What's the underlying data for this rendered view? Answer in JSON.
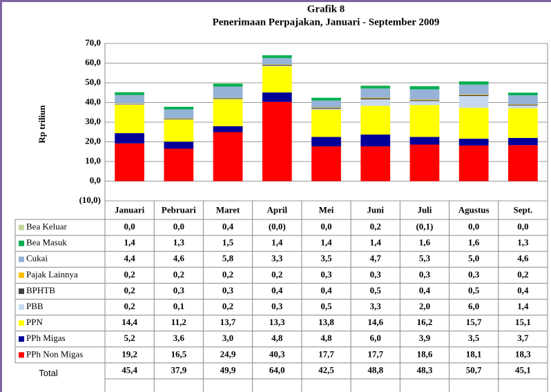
{
  "chart_data": {
    "type": "stacked_bar",
    "title": "Grafik 8",
    "subtitle": "Penerimaan Perpajakan, Januari - September 2009",
    "y_label": "Rp triliun",
    "categories": [
      "Januari",
      "Pebruari",
      "Maret",
      "April",
      "Mei",
      "Juni",
      "Juli",
      "Agustus",
      "Sept."
    ],
    "ylim": [
      -10,
      70
    ],
    "yticks": [
      {
        "value": -10,
        "label": "(10,0)"
      },
      {
        "value": 0,
        "label": "0,0"
      },
      {
        "value": 10,
        "label": "10,0"
      },
      {
        "value": 20,
        "label": "20,0"
      },
      {
        "value": 30,
        "label": "30,0"
      },
      {
        "value": 40,
        "label": "40,0"
      },
      {
        "value": 50,
        "label": "50,0"
      },
      {
        "value": 60,
        "label": "60,0"
      },
      {
        "value": 70,
        "label": "70,0"
      }
    ],
    "grid": true,
    "series": [
      {
        "name": "PPh Non Migas",
        "color": "#ff0000",
        "values": [
          19.2,
          16.5,
          24.9,
          40.3,
          17.7,
          17.7,
          18.6,
          18.1,
          18.3
        ],
        "value_labels": [
          "19,2",
          "16,5",
          "24,9",
          "40,3",
          "17,7",
          "17,7",
          "18,6",
          "18,1",
          "18,3"
        ]
      },
      {
        "name": "PPh Migas",
        "color": "#000099",
        "values": [
          5.2,
          3.6,
          3.0,
          4.8,
          4.8,
          6.0,
          3.9,
          3.5,
          3.7
        ],
        "value_labels": [
          "5,2",
          "3,6",
          "3,0",
          "4,8",
          "4,8",
          "6,0",
          "3,9",
          "3,5",
          "3,7"
        ]
      },
      {
        "name": "PPN",
        "color": "#ffff00",
        "values": [
          14.4,
          11.2,
          13.7,
          13.3,
          13.8,
          14.6,
          16.2,
          15.7,
          15.1
        ],
        "value_labels": [
          "14,4",
          "11,2",
          "13,7",
          "13,3",
          "13,8",
          "14,6",
          "16,2",
          "15,7",
          "15,1"
        ]
      },
      {
        "name": "PBB",
        "color": "#c6d9f1",
        "values": [
          0.2,
          0.1,
          0.2,
          0.3,
          0.5,
          3.3,
          2.0,
          6.0,
          1.4
        ],
        "value_labels": [
          "0,2",
          "0,1",
          "0,2",
          "0,3",
          "0,5",
          "3,3",
          "2,0",
          "6,0",
          "1,4"
        ]
      },
      {
        "name": "BPHTB",
        "color": "#404040",
        "values": [
          0.2,
          0.3,
          0.3,
          0.4,
          0.4,
          0.5,
          0.4,
          0.5,
          0.4
        ],
        "value_labels": [
          "0,2",
          "0,3",
          "0,3",
          "0,4",
          "0,4",
          "0,5",
          "0,4",
          "0,5",
          "0,4"
        ]
      },
      {
        "name": "Pajak Lainnya",
        "color": "#ffc000",
        "values": [
          0.2,
          0.2,
          0.2,
          0.2,
          0.3,
          0.3,
          0.3,
          0.3,
          0.2
        ],
        "value_labels": [
          "0,2",
          "0,2",
          "0,2",
          "0,2",
          "0,3",
          "0,3",
          "0,3",
          "0,3",
          "0,2"
        ]
      },
      {
        "name": "Cukai",
        "color": "#95b3d7",
        "values": [
          4.4,
          4.6,
          5.8,
          3.3,
          3.5,
          4.7,
          5.3,
          5.0,
          4.6
        ],
        "value_labels": [
          "4,4",
          "4,6",
          "5,8",
          "3,3",
          "3,5",
          "4,7",
          "5,3",
          "5,0",
          "4,6"
        ]
      },
      {
        "name": "Bea Masuk",
        "color": "#00b050",
        "values": [
          1.4,
          1.3,
          1.5,
          1.4,
          1.4,
          1.4,
          1.6,
          1.6,
          1.3
        ],
        "value_labels": [
          "1,4",
          "1,3",
          "1,5",
          "1,4",
          "1,4",
          "1,4",
          "1,6",
          "1,6",
          "1,3"
        ]
      },
      {
        "name": "Bea Keluar",
        "color": "#c3d69b",
        "values": [
          0,
          0,
          0.4,
          0,
          0,
          0.2,
          -0.1,
          0,
          0
        ],
        "value_labels": [
          "0,0",
          "0,0",
          "0,4",
          "(0,0)",
          "0,0",
          "0,2",
          "(0,1)",
          "0,0",
          "0,0"
        ]
      }
    ],
    "total": {
      "name": "Total",
      "values": [
        45.4,
        37.9,
        49.9,
        64.0,
        42.5,
        48.8,
        48.3,
        50.7,
        45.1
      ],
      "value_labels": [
        "45,4",
        "37,9",
        "49,9",
        "64,0",
        "42,5",
        "48,8",
        "48,3",
        "50,7",
        "45,1"
      ]
    }
  }
}
